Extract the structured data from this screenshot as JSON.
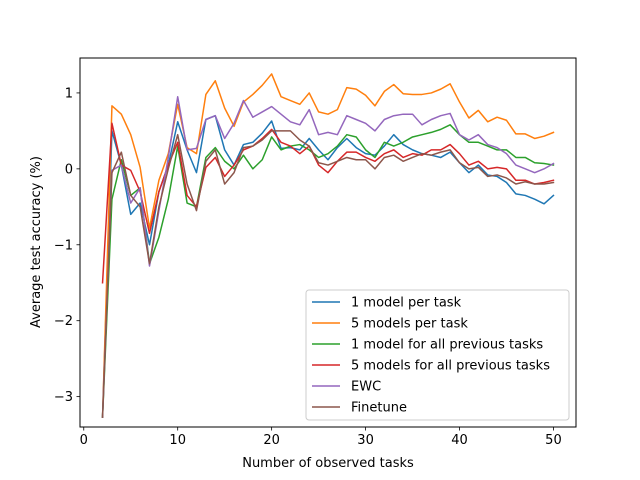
{
  "chart_data": {
    "type": "line",
    "title": "",
    "xlabel": "Number of observed tasks",
    "ylabel": "Average test accuracy (%)",
    "xlim": [
      -0.4,
      52.4
    ],
    "ylim": [
      -3.4,
      1.46
    ],
    "xticks": [
      0,
      10,
      20,
      30,
      40,
      50
    ],
    "yticks": [
      -3,
      -2,
      -1,
      0,
      1
    ],
    "grid": false,
    "legend_position": "lower-right",
    "x": [
      2,
      3,
      4,
      5,
      6,
      7,
      8,
      9,
      10,
      11,
      12,
      13,
      14,
      15,
      16,
      17,
      18,
      19,
      20,
      21,
      22,
      23,
      24,
      25,
      26,
      27,
      28,
      29,
      30,
      31,
      32,
      33,
      34,
      35,
      36,
      37,
      38,
      39,
      40,
      41,
      42,
      43,
      44,
      45,
      46,
      47,
      48,
      49,
      50
    ],
    "series": [
      {
        "name": "1 model per task",
        "color": "#1f77b4",
        "values": [
          -3.27,
          0.5,
          0.05,
          -0.6,
          -0.45,
          -1.0,
          -0.3,
          0.05,
          0.62,
          0.25,
          -0.05,
          0.65,
          0.7,
          0.25,
          0.05,
          0.32,
          0.35,
          0.47,
          0.63,
          0.27,
          0.28,
          0.25,
          0.4,
          0.25,
          0.12,
          0.28,
          0.4,
          0.28,
          0.2,
          0.18,
          0.3,
          0.45,
          0.32,
          0.25,
          0.2,
          0.18,
          0.15,
          0.22,
          0.08,
          -0.05,
          0.05,
          -0.08,
          -0.1,
          -0.18,
          -0.33,
          -0.35,
          -0.4,
          -0.46,
          -0.35
        ]
      },
      {
        "name": "5 models per task",
        "color": "#ff7f0e",
        "values": [
          -3.27,
          0.83,
          0.72,
          0.45,
          0.02,
          -0.78,
          -0.15,
          0.2,
          0.85,
          0.28,
          0.2,
          0.98,
          1.16,
          0.8,
          0.56,
          0.88,
          0.98,
          1.1,
          1.25,
          0.95,
          0.9,
          0.85,
          1.0,
          0.75,
          0.72,
          0.78,
          1.07,
          1.05,
          0.97,
          0.83,
          1.02,
          1.11,
          0.99,
          0.98,
          0.98,
          1.0,
          1.05,
          1.12,
          0.88,
          0.67,
          0.77,
          0.62,
          0.68,
          0.64,
          0.46,
          0.46,
          0.4,
          0.43,
          0.48
        ]
      },
      {
        "name": "1 model for all previous tasks",
        "color": "#2ca02c",
        "values": [
          -3.27,
          -0.4,
          0.12,
          -0.35,
          -0.25,
          -1.25,
          -0.9,
          -0.4,
          0.3,
          -0.45,
          -0.5,
          0.15,
          0.28,
          0.1,
          0.0,
          0.18,
          0.0,
          0.12,
          0.42,
          0.25,
          0.3,
          0.32,
          0.25,
          0.15,
          0.2,
          0.3,
          0.45,
          0.42,
          0.25,
          0.15,
          0.35,
          0.3,
          0.35,
          0.42,
          0.45,
          0.48,
          0.52,
          0.58,
          0.45,
          0.35,
          0.35,
          0.3,
          0.25,
          0.25,
          0.15,
          0.15,
          0.08,
          0.07,
          0.05
        ]
      },
      {
        "name": "5 models for all previous tasks",
        "color": "#d62728",
        "values": [
          -1.5,
          0.6,
          0.05,
          -0.02,
          -0.3,
          -0.85,
          -0.3,
          0.05,
          0.35,
          -0.35,
          -0.5,
          0.02,
          0.15,
          -0.1,
          0.05,
          0.25,
          0.3,
          0.4,
          0.52,
          0.35,
          0.3,
          0.2,
          0.3,
          0.05,
          -0.05,
          0.1,
          0.22,
          0.22,
          0.15,
          0.1,
          0.2,
          0.25,
          0.15,
          0.2,
          0.18,
          0.25,
          0.25,
          0.32,
          0.2,
          0.05,
          0.1,
          0.0,
          0.02,
          0.0,
          -0.15,
          -0.15,
          -0.2,
          -0.18,
          -0.15
        ]
      },
      {
        "name": "EWC",
        "color": "#9467bd",
        "values": [
          -3.27,
          -0.02,
          0.05,
          -0.45,
          -0.25,
          -1.28,
          -0.55,
          0.15,
          0.95,
          0.25,
          0.27,
          0.65,
          0.7,
          0.4,
          0.6,
          0.9,
          0.68,
          0.75,
          0.82,
          0.72,
          0.62,
          0.58,
          0.78,
          0.45,
          0.48,
          0.45,
          0.7,
          0.65,
          0.6,
          0.5,
          0.65,
          0.7,
          0.72,
          0.72,
          0.58,
          0.65,
          0.7,
          0.73,
          0.45,
          0.38,
          0.45,
          0.32,
          0.28,
          0.2,
          0.05,
          0.0,
          -0.05,
          0.0,
          0.07
        ]
      },
      {
        "name": "Finetune",
        "color": "#8c564b",
        "values": [
          -3.27,
          -0.05,
          0.22,
          -0.35,
          -0.5,
          -1.25,
          -0.5,
          0.0,
          0.45,
          -0.2,
          -0.55,
          0.1,
          0.25,
          -0.2,
          -0.05,
          0.28,
          0.3,
          0.38,
          0.5,
          0.5,
          0.5,
          0.38,
          0.3,
          0.08,
          0.05,
          0.1,
          0.15,
          0.12,
          0.12,
          0.0,
          0.15,
          0.18,
          0.1,
          0.15,
          0.2,
          0.18,
          0.22,
          0.25,
          0.08,
          0.0,
          0.02,
          -0.1,
          -0.08,
          -0.12,
          -0.2,
          -0.17,
          -0.2,
          -0.2,
          -0.18
        ]
      }
    ]
  }
}
